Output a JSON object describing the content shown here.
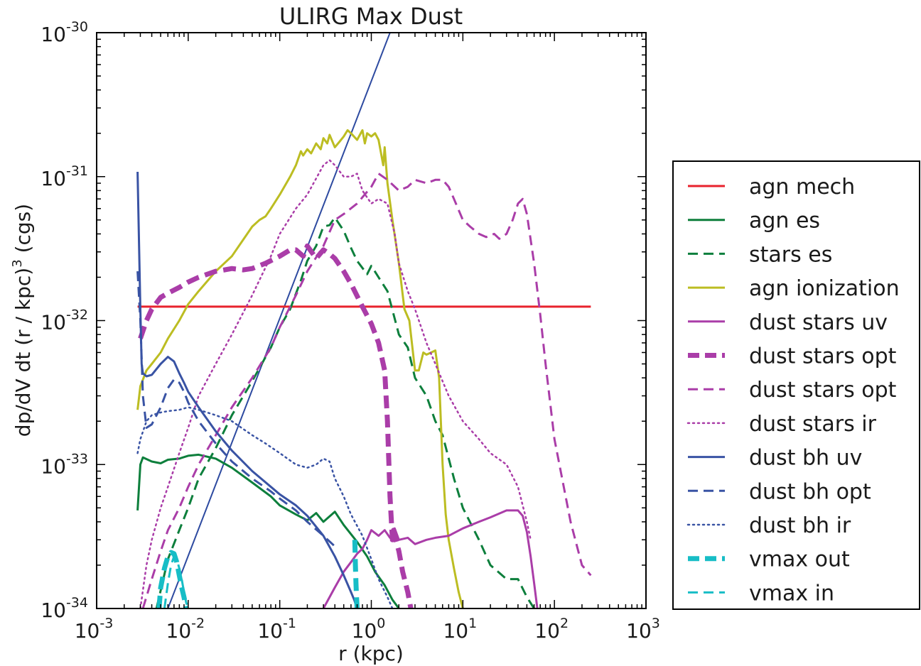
{
  "chart_data": {
    "type": "line",
    "title": "ULIRG Max Dust",
    "xlabel": "r (kpc)",
    "ylabel_main": "dp/dV dt   (r / kpc)",
    "ylabel_exp": "3",
    "ylabel_tail": "  (cgs)",
    "xscale": "log",
    "yscale": "log",
    "xlim": [
      0.001,
      1000
    ],
    "ylim": [
      1e-34,
      1e-30
    ],
    "x_ticks": [
      {
        "value": 0.001,
        "base": "10",
        "exp": "-3"
      },
      {
        "value": 0.01,
        "base": "10",
        "exp": "-2"
      },
      {
        "value": 0.1,
        "base": "10",
        "exp": "-1"
      },
      {
        "value": 1,
        "base": "10",
        "exp": "0"
      },
      {
        "value": 10,
        "base": "10",
        "exp": "1"
      },
      {
        "value": 100,
        "base": "10",
        "exp": "2"
      },
      {
        "value": 1000,
        "base": "10",
        "exp": "3"
      }
    ],
    "y_ticks": [
      {
        "value": 1e-34,
        "base": "10",
        "exp": "-34"
      },
      {
        "value": 1e-33,
        "base": "10",
        "exp": "-33"
      },
      {
        "value": 1e-32,
        "base": "10",
        "exp": "-32"
      },
      {
        "value": 1e-31,
        "base": "10",
        "exp": "-31"
      },
      {
        "value": 1e-30,
        "base": "10",
        "exp": "-30"
      }
    ],
    "legend_position": "outside-right",
    "series": [
      {
        "name": "agn mech",
        "color": "#e8222c",
        "style": "solid",
        "width": 3,
        "x": [
          0.0028,
          250
        ],
        "y": [
          1.25e-32,
          1.25e-32
        ]
      },
      {
        "name": "agn es",
        "color": "#0d7f3c",
        "style": "solid",
        "width": 3,
        "x": [
          0.0028,
          0.003,
          0.0032,
          0.004,
          0.005,
          0.006,
          0.008,
          0.01,
          0.013,
          0.02,
          0.03,
          0.05,
          0.08,
          0.1,
          0.15,
          0.2,
          0.25,
          0.3,
          0.4,
          0.5,
          0.7,
          0.9,
          1.1,
          1.4,
          1.7,
          2.0
        ],
        "y": [
          4.8e-34,
          1e-33,
          1.12e-33,
          1.05e-33,
          1.02e-33,
          1.08e-33,
          1.1e-33,
          1.15e-33,
          1.17e-33,
          1.1e-33,
          9.5e-34,
          7.5e-34,
          6e-34,
          5.2e-34,
          4.5e-34,
          4.1e-34,
          4.6e-34,
          4e-34,
          4.7e-34,
          3.8e-34,
          2.9e-34,
          2.3e-34,
          1.8e-34,
          1.45e-34,
          1.15e-34,
          1e-34
        ]
      },
      {
        "name": "stars es",
        "color": "#0d7f3c",
        "style": "dashed",
        "width": 3,
        "x": [
          0.0045,
          0.006,
          0.008,
          0.01,
          0.013,
          0.02,
          0.03,
          0.05,
          0.08,
          0.1,
          0.13,
          0.17,
          0.2,
          0.25,
          0.3,
          0.35,
          0.4,
          0.5,
          0.6,
          0.7,
          0.9,
          1.0,
          1.2,
          1.5,
          2.0,
          2.5,
          3.0,
          4.0,
          5.0,
          6.0,
          8.0,
          10,
          15,
          20,
          30,
          40,
          50,
          60
        ],
        "y": [
          1e-34,
          2.2e-34,
          3.5e-34,
          5e-34,
          8e-34,
          1.3e-33,
          2.2e-33,
          3.8e-33,
          6.5e-33,
          9e-33,
          1.2e-32,
          1.9e-32,
          2.6e-32,
          3.3e-32,
          4.5e-32,
          4.6e-32,
          5.2e-32,
          4.2e-32,
          3.2e-32,
          2.6e-32,
          2.1e-32,
          2.4e-32,
          2e-32,
          1.6e-32,
          8e-33,
          6.5e-33,
          4e-33,
          3e-33,
          2e-33,
          1.6e-33,
          8e-34,
          5e-34,
          3e-34,
          2e-34,
          1.6e-34,
          1.6e-34,
          1.2e-34,
          1e-34
        ]
      },
      {
        "name": "agn ionization",
        "color": "#bcbd22",
        "style": "solid",
        "width": 3,
        "x": [
          0.0028,
          0.003,
          0.0035,
          0.004,
          0.005,
          0.006,
          0.008,
          0.01,
          0.013,
          0.02,
          0.03,
          0.05,
          0.06,
          0.07,
          0.08,
          0.1,
          0.13,
          0.15,
          0.17,
          0.18,
          0.2,
          0.22,
          0.25,
          0.28,
          0.3,
          0.33,
          0.35,
          0.4,
          0.45,
          0.5,
          0.55,
          0.6,
          0.7,
          0.8,
          0.85,
          0.9,
          1.0,
          1.1,
          1.2,
          1.35,
          1.4,
          1.5,
          1.7,
          2.0,
          2.3,
          2.6,
          3.0,
          3.3,
          3.7,
          4.0,
          4.5,
          5.0,
          5.5,
          6.0,
          6.5,
          7.0,
          8.0,
          9.0,
          10
        ],
        "y": [
          2.4e-33,
          3.5e-33,
          4.5e-33,
          5e-33,
          6e-33,
          7.5e-33,
          1e-32,
          1.3e-32,
          1.6e-32,
          2.2e-32,
          2.8e-32,
          4.5e-32,
          5e-32,
          5.3e-32,
          6e-32,
          7.5e-32,
          1e-31,
          1.2e-31,
          1.5e-31,
          1.4e-31,
          1.55e-31,
          1.45e-31,
          1.7e-31,
          1.55e-31,
          1.85e-31,
          1.7e-31,
          1.95e-31,
          1.6e-31,
          1.75e-31,
          1.9e-31,
          2.1e-31,
          2e-31,
          1.8e-31,
          2.1e-31,
          1.7e-31,
          2e-31,
          1.9e-31,
          2e-31,
          1.8e-31,
          1.2e-31,
          1.6e-31,
          9e-32,
          5e-32,
          2.5e-32,
          1.2e-32,
          1e-32,
          4.5e-33,
          4.5e-33,
          6e-33,
          5.8e-33,
          6e-33,
          6.2e-33,
          4e-33,
          1e-33,
          4.5e-34,
          3e-34,
          1.9e-34,
          1.3e-34,
          1e-34
        ]
      },
      {
        "name": "dust stars uv",
        "color": "#aa3da8",
        "style": "solid",
        "width": 3,
        "x": [
          0.3,
          0.4,
          0.5,
          0.6,
          0.7,
          0.8,
          0.9,
          1.0,
          1.2,
          1.4,
          1.6,
          1.8,
          2.0,
          2.5,
          3.0,
          4.0,
          5.0,
          7.0,
          10,
          15,
          20,
          30,
          40,
          45,
          50,
          55,
          60,
          65
        ],
        "y": [
          1e-34,
          1.4e-34,
          1.8e-34,
          2.1e-34,
          2.4e-34,
          2.6e-34,
          3e-34,
          3.5e-34,
          3.2e-34,
          3.5e-34,
          3.1e-34,
          3.6e-34,
          3e-34,
          3.1e-34,
          2.8e-34,
          3e-34,
          3.1e-34,
          3.2e-34,
          3.6e-34,
          4e-34,
          4.3e-34,
          4.8e-34,
          4.8e-34,
          4.4e-34,
          3.4e-34,
          2.3e-34,
          1.5e-34,
          1e-34
        ]
      },
      {
        "name": "dust stars opt",
        "color": "#aa3da8",
        "style": "dashed",
        "width": 7,
        "x": [
          0.003,
          0.0035,
          0.004,
          0.005,
          0.006,
          0.008,
          0.01,
          0.013,
          0.02,
          0.025,
          0.03,
          0.04,
          0.05,
          0.07,
          0.1,
          0.13,
          0.15,
          0.18,
          0.2,
          0.25,
          0.3,
          0.35,
          0.4,
          0.5,
          0.6,
          0.8,
          1.0,
          1.2,
          1.4,
          1.5,
          1.6,
          1.7,
          1.75,
          1.8,
          2.0,
          2.2,
          2.5,
          2.7
        ],
        "y": [
          7.5e-33,
          1e-32,
          1.2e-32,
          1.45e-32,
          1.55e-32,
          1.7e-32,
          1.85e-32,
          2e-32,
          2.2e-32,
          2.25e-32,
          2.3e-32,
          2.25e-32,
          2.3e-32,
          2.5e-32,
          2.8e-32,
          3.1e-32,
          3.1e-32,
          2.8e-32,
          3.3e-32,
          2.7e-32,
          3.1e-32,
          2.9e-32,
          2.7e-32,
          2.2e-32,
          1.8e-32,
          1.25e-32,
          9.5e-33,
          7e-33,
          4.5e-33,
          2e-33,
          6e-34,
          3e-34,
          3.5e-34,
          3.2e-34,
          2.5e-34,
          1.8e-34,
          1.3e-34,
          1e-34
        ]
      },
      {
        "name": "dust stars opt",
        "color": "#aa3da8",
        "style": "dashed",
        "width": 3,
        "x": [
          0.0032,
          0.004,
          0.005,
          0.006,
          0.008,
          0.01,
          0.013,
          0.02,
          0.03,
          0.05,
          0.08,
          0.1,
          0.15,
          0.2,
          0.3,
          0.4,
          0.5,
          0.7,
          1.0,
          1.2,
          1.5,
          2.0,
          2.5,
          3.0,
          4.0,
          5.0,
          6.0,
          7.0,
          8.0,
          10,
          12,
          15,
          18,
          22,
          25,
          30,
          35,
          40,
          45,
          50,
          60,
          70,
          80,
          100,
          150,
          200,
          250
        ],
        "y": [
          1e-34,
          1.6e-34,
          2.5e-34,
          3.5e-34,
          5e-34,
          7e-34,
          1e-33,
          1.6e-33,
          2.5e-33,
          4e-33,
          6.5e-33,
          9e-33,
          1.5e-32,
          2.2e-32,
          3.3e-32,
          5e-32,
          5.5e-32,
          6.5e-32,
          8.5e-32,
          1.05e-31,
          9.5e-32,
          8e-32,
          8.5e-32,
          9.5e-32,
          9e-32,
          9.5e-32,
          9.5e-32,
          8.5e-32,
          7e-32,
          5e-32,
          4.5e-32,
          4e-32,
          3.8e-32,
          4e-32,
          3.7e-32,
          4e-32,
          5e-32,
          6.5e-32,
          7e-32,
          5.5e-32,
          2.5e-32,
          1.1e-32,
          5e-33,
          1.5e-33,
          4e-34,
          2e-34,
          1.7e-34
        ]
      },
      {
        "name": "dust stars ir",
        "color": "#aa3da8",
        "style": "dotted",
        "width": 2.5,
        "x": [
          0.003,
          0.0035,
          0.004,
          0.005,
          0.006,
          0.008,
          0.01,
          0.013,
          0.02,
          0.03,
          0.05,
          0.08,
          0.1,
          0.15,
          0.2,
          0.3,
          0.35,
          0.4,
          0.5,
          0.6,
          0.7,
          0.8,
          1.0,
          1.2,
          1.5,
          1.8,
          2.0,
          2.5,
          3.0,
          4.0,
          5.0,
          7.0,
          10,
          15,
          20,
          30,
          40,
          50,
          55
        ],
        "y": [
          1e-34,
          2e-34,
          3e-34,
          5e-34,
          7e-34,
          1.2e-33,
          1.8e-33,
          3e-33,
          5e-33,
          8e-33,
          1.5e-32,
          2.8e-32,
          4e-32,
          6e-32,
          7.5e-32,
          1.2e-31,
          1.3e-31,
          1.2e-31,
          1e-31,
          1e-31,
          1.05e-31,
          8e-32,
          6.5e-32,
          7e-32,
          6.5e-32,
          4e-32,
          2.5e-32,
          1.6e-32,
          1.2e-32,
          7e-33,
          5e-33,
          3e-33,
          2e-33,
          1.5e-33,
          1.2e-33,
          1e-33,
          7e-34,
          4e-34,
          3e-34
        ]
      },
      {
        "name": "dust bh uv",
        "color": "#3953a4",
        "style": "solid",
        "width": 3,
        "x": [
          0.0028,
          0.003,
          0.0031,
          0.0032,
          0.0035,
          0.004,
          0.005,
          0.006,
          0.007,
          0.008,
          0.009,
          0.01,
          0.013,
          0.02,
          0.03,
          0.05,
          0.08,
          0.1,
          0.15,
          0.2,
          0.3,
          0.4,
          0.5,
          0.6,
          0.65,
          0.7
        ],
        "y": [
          1.08e-31,
          1.2e-32,
          5e-33,
          4.3e-33,
          4.1e-33,
          4.2e-33,
          5e-33,
          5.6e-33,
          5.2e-33,
          4.3e-33,
          3.7e-33,
          3.2e-33,
          2.5e-33,
          1.7e-33,
          1.25e-33,
          9e-34,
          7e-34,
          6.2e-34,
          5.2e-34,
          4.4e-34,
          3.2e-34,
          2.3e-34,
          1.7e-34,
          1.3e-34,
          1.15e-34,
          1e-34
        ]
      },
      {
        "name": "dust bh opt",
        "color": "#3953a4",
        "style": "dashed",
        "width": 3,
        "x": [
          0.0028,
          0.003,
          0.0032,
          0.0035,
          0.004,
          0.005,
          0.006,
          0.007,
          0.008,
          0.009,
          0.01,
          0.013,
          0.02,
          0.03,
          0.05,
          0.08,
          0.1,
          0.15,
          0.2,
          0.3,
          0.4
        ],
        "y": [
          2.2e-32,
          1e-32,
          3e-33,
          1.8e-33,
          1.9e-33,
          2.5e-33,
          3.4e-33,
          3.9e-33,
          3.7e-33,
          3.2e-33,
          2.7e-33,
          2e-33,
          1.4e-33,
          1.05e-33,
          8e-34,
          6.5e-34,
          5.8e-34,
          4.8e-34,
          4e-34,
          3.2e-34,
          2.7e-34
        ]
      },
      {
        "name": "dust bh ir",
        "color": "#3953a4",
        "style": "dotted",
        "width": 2.5,
        "x": [
          0.0028,
          0.003,
          0.0035,
          0.004,
          0.005,
          0.006,
          0.008,
          0.01,
          0.013,
          0.02,
          0.03,
          0.05,
          0.07,
          0.1,
          0.15,
          0.2,
          0.25,
          0.3,
          0.35,
          0.4,
          0.5,
          0.6,
          0.8,
          1.0,
          1.2,
          1.5,
          1.7
        ],
        "y": [
          1.2e-33,
          1.5e-33,
          2e-33,
          2.2e-33,
          2.3e-33,
          2.35e-33,
          2.4e-33,
          2.5e-33,
          2.4e-33,
          2.2e-33,
          2e-33,
          1.6e-33,
          1.4e-33,
          1.2e-33,
          1e-33,
          9.5e-34,
          1e-33,
          1.1e-33,
          1.05e-33,
          8e-34,
          6e-34,
          4.5e-34,
          3.2e-34,
          2.2e-34,
          1.6e-34,
          1.2e-34,
          1e-34
        ]
      },
      {
        "name": "vmax out",
        "color": "#17bdc6",
        "style": "dashed",
        "width": 7,
        "x": [
          0.0048,
          0.005,
          0.0055,
          0.006,
          0.0065,
          0.007,
          0.0075,
          0.008,
          0.0085,
          0.009,
          0.0095
        ],
        "y": [
          1e-34,
          1.4e-34,
          1.9e-34,
          2.3e-34,
          2.45e-34,
          2.4e-34,
          2.1e-34,
          1.7e-34,
          1.4e-34,
          1.2e-34,
          1e-34
        ],
        "x2": [
          0.66,
          0.67,
          0.68,
          0.69,
          0.7
        ],
        "y2": [
          3e-34,
          2e-34,
          1.5e-34,
          1.2e-34,
          1e-34
        ]
      },
      {
        "name": "vmax in",
        "color": "#17bdc6",
        "style": "dashed",
        "width": 3,
        "x": [
          0.0055,
          0.006,
          0.0065,
          0.007,
          0.0075,
          0.008,
          0.0085,
          0.009,
          0.0095,
          0.01
        ],
        "y": [
          1e-34,
          1.5e-34,
          2e-34,
          2.3e-34,
          2.2e-34,
          1.9e-34,
          1.6e-34,
          1.3e-34,
          1.1e-34,
          1e-34
        ]
      }
    ],
    "reference_line": {
      "color": "#2d4aa0",
      "x": [
        0.006,
        1.6
      ],
      "y": [
        1e-34,
        1e-30
      ]
    }
  }
}
